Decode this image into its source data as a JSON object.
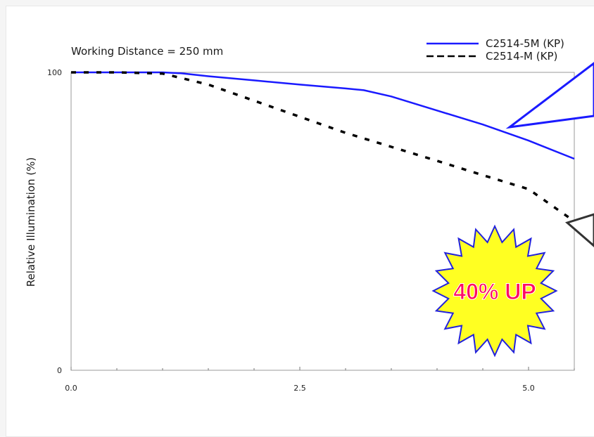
{
  "chart_data": {
    "type": "line",
    "title": "Working Distance = 250 mm",
    "xlabel": "",
    "ylabel": "Relative Illumination (%)",
    "xlim": [
      0,
      5.5
    ],
    "ylim": [
      0,
      100
    ],
    "x_ticks": [
      "0.0",
      "2.5",
      "5.0"
    ],
    "y_ticks": [
      "0",
      "100"
    ],
    "grid": false,
    "legend_position": "top-right",
    "series": [
      {
        "name": "C2514-5M (KP)",
        "color": "#1a1aff",
        "style": "solid",
        "x": [
          0,
          0.5,
          1.0,
          1.2,
          1.5,
          2.0,
          2.5,
          3.0,
          3.2,
          3.5,
          4.0,
          4.5,
          5.0,
          5.5
        ],
        "y": [
          100,
          100,
          100,
          99.7,
          98.7,
          97.3,
          95.9,
          94.6,
          94.0,
          91.9,
          87.2,
          82.5,
          77.1,
          71.0
        ]
      },
      {
        "name": "C2514-M (KP)",
        "color": "#000000",
        "style": "dashed",
        "x": [
          0,
          0.5,
          1.0,
          1.5,
          2.0,
          2.5,
          3.0,
          3.5,
          4.0,
          4.5,
          5.0,
          5.5
        ],
        "y": [
          100,
          100,
          99.6,
          95.9,
          90.5,
          85.1,
          79.7,
          75.0,
          70.3,
          65.5,
          60.8,
          50.0
        ]
      }
    ],
    "annotations": [
      {
        "text": "40% UP",
        "color": "#ff0a64",
        "badge_fill": "#ffff22",
        "badge_stroke": "#2222dd"
      }
    ]
  }
}
